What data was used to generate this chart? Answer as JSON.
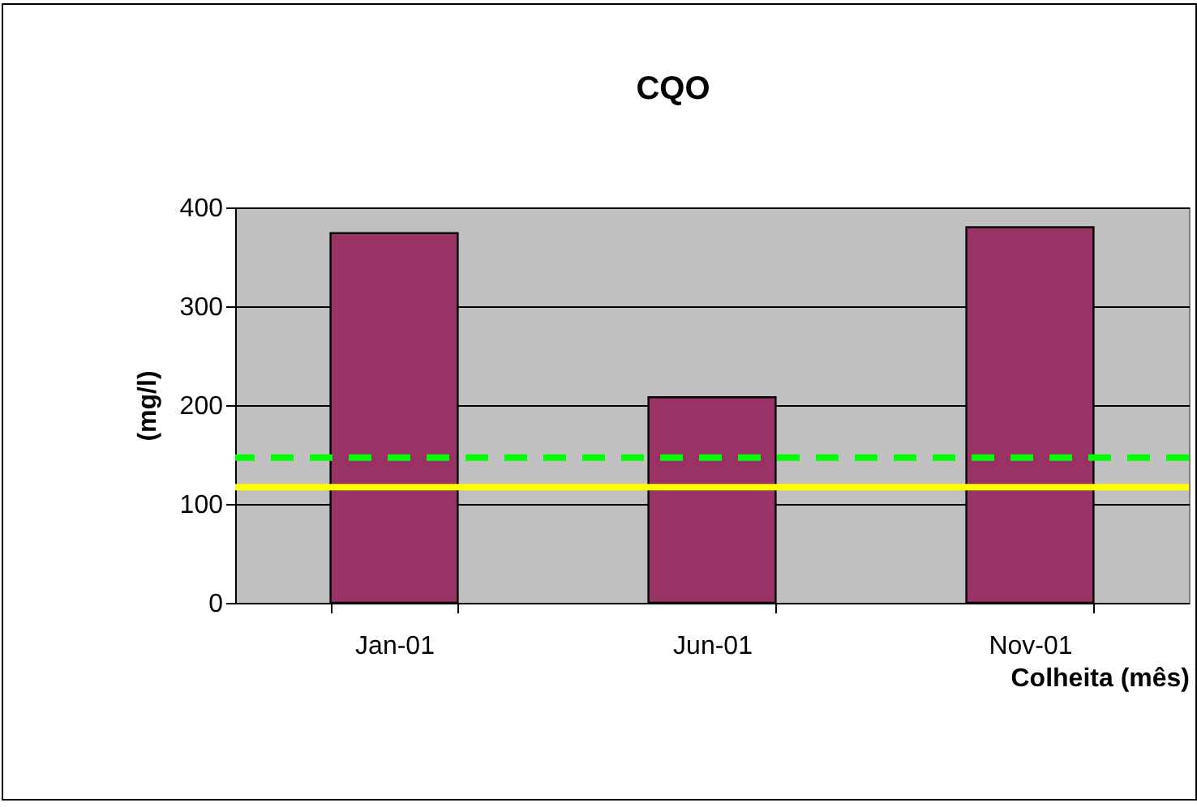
{
  "chart_data": {
    "type": "bar",
    "title": "CQO",
    "xlabel": "Colheita (mês)",
    "ylabel": "(mg/l)",
    "categories": [
      "Jan-01",
      "Jun-01",
      "Nov-01"
    ],
    "values": [
      374,
      208,
      380
    ],
    "color": "#993366",
    "ylim": [
      0,
      400
    ],
    "yticks": [
      0,
      100,
      200,
      300,
      400
    ],
    "grid": "y",
    "ref_lines": [
      {
        "axis": "y",
        "value": 147,
        "color": "#00ff00",
        "line_style": "dashed"
      },
      {
        "axis": "y",
        "value": 117,
        "color": "#ffff00",
        "line_style": "solid"
      }
    ]
  }
}
